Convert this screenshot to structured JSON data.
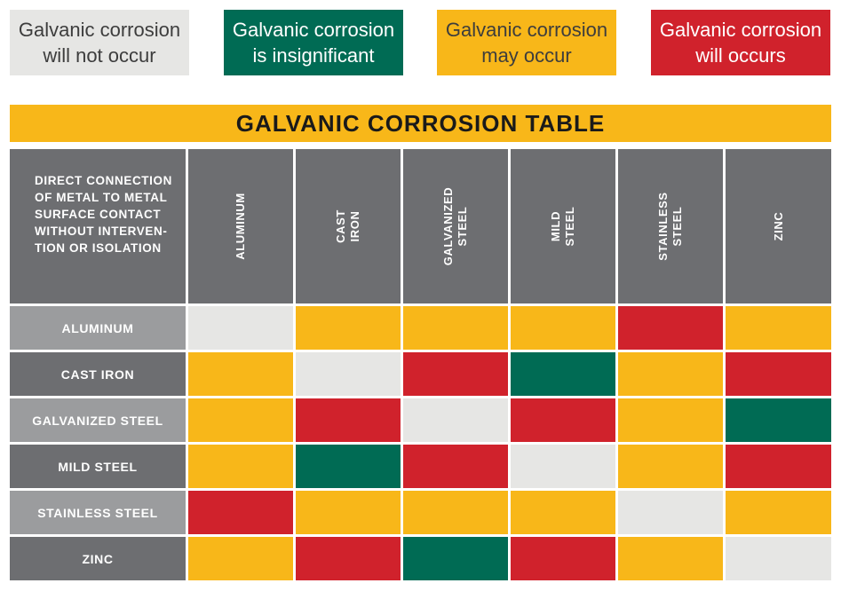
{
  "legend": [
    {
      "label": "Galvanic corrosion\nwill not occur",
      "bg": "#e6e6e4",
      "fg": "#3d3d3d"
    },
    {
      "label": "Galvanic corrosion\nis insignificant",
      "bg": "#006b54",
      "fg": "#ffffff"
    },
    {
      "label": "Galvanic corrosion\nmay occur",
      "bg": "#f8b719",
      "fg": "#3d3d3d"
    },
    {
      "label": "Galvanic corrosion\nwill occurs",
      "bg": "#d0222c",
      "fg": "#ffffff"
    }
  ],
  "chart_data": {
    "type": "heatmap",
    "title": "GALVANIC CORROSION TABLE",
    "corner_label": "DIRECT CONNECTION\nOF METAL TO METAL\nSURFACE CONTACT\nWITHOUT INTERVEN-\nTION OR ISOLATION",
    "columns": [
      "ALUMINUM",
      "CAST IRON",
      "GALVANIZED STEEL",
      "MILD STEEL",
      "STAINLESS\nSTEEL",
      "ZINC"
    ],
    "rows": [
      "ALUMINUM",
      "CAST IRON",
      "GALVANIZED STEEL",
      "MILD STEEL",
      "STAINLESS STEEL",
      "ZINC"
    ],
    "levels": [
      "will not occur",
      "is insignificant",
      "may occur",
      "will occurs"
    ],
    "level_colors": [
      "#e6e6e4",
      "#006b54",
      "#f8b719",
      "#d0222c"
    ],
    "values": [
      [
        0,
        2,
        2,
        2,
        3,
        2
      ],
      [
        2,
        0,
        3,
        1,
        2,
        3
      ],
      [
        2,
        3,
        0,
        3,
        2,
        1
      ],
      [
        2,
        1,
        3,
        0,
        2,
        3
      ],
      [
        3,
        2,
        2,
        2,
        0,
        2
      ],
      [
        2,
        3,
        1,
        3,
        2,
        0
      ]
    ],
    "header_color": "#6d6e71",
    "row_header_colors": [
      "#9b9c9e",
      "#6d6e71"
    ]
  }
}
